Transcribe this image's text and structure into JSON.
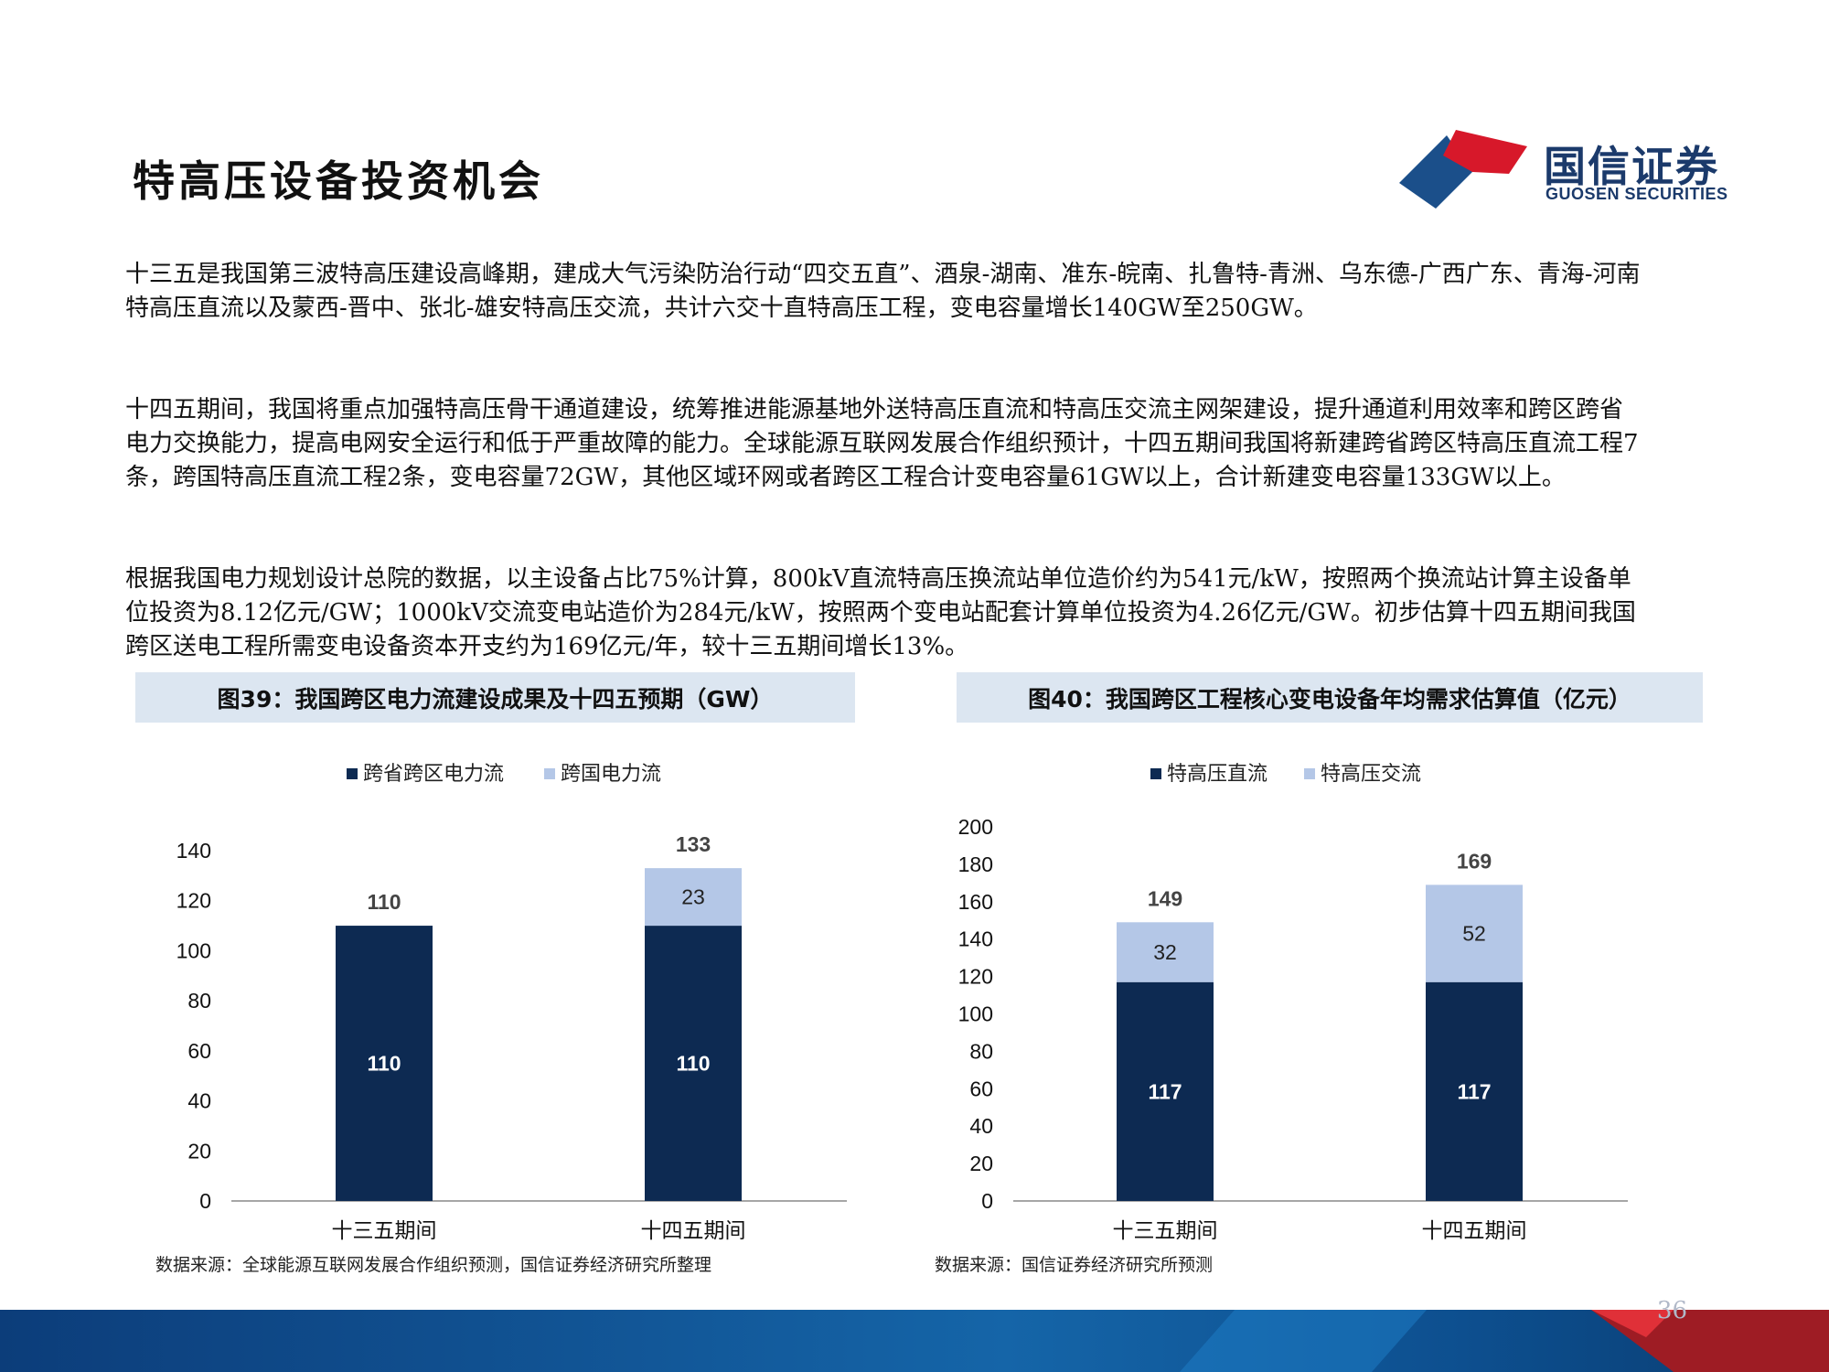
{
  "header": {
    "title": "特高压设备投资机会",
    "logo_cn": "国信证券",
    "logo_en": "GUOSEN SECURITIES",
    "colors": {
      "logo_red": "#d7182a",
      "logo_blue": "#1b4f8a",
      "logo_dark": "#1b3a6b"
    }
  },
  "paragraphs": [
    "十三五是我国第三波特高压建设高峰期，建成大气污染防治行动“四交五直”、酒泉-湖南、准东-皖南、扎鲁特-青洲、乌东德-广西广东、青海-河南特高压直流以及蒙西-晋中、张北-雄安特高压交流，共计六交十直特高压工程，变电容量增长140GW至250GW。",
    "十四五期间，我国将重点加强特高压骨干通道建设，统筹推进能源基地外送特高压直流和特高压交流主网架建设，提升通道利用效率和跨区跨省电力交换能力，提高电网安全运行和低于严重故障的能力。全球能源互联网发展合作组织预计，十四五期间我国将新建跨省跨区特高压直流工程7条，跨国特高压直流工程2条，变电容量72GW，其他区域环网或者跨区工程合计变电容量61GW以上，合计新建变电容量133GW以上。",
    "根据我国电力规划设计总院的数据，以主设备占比75%计算，800kV直流特高压换流站单位造价约为541元/kW，按照两个换流站计算主设备单位投资为8.12亿元/GW；1000kV交流变电站造价为284元/kW，按照两个变电站配套计算单位投资为4.26亿元/GW。初步估算十四五期间我国跨区送电工程所需变电设备资本开支约为169亿元/年，较十三五期间增长13%。"
  ],
  "chart_data": [
    {
      "type": "bar",
      "stacked": true,
      "title": "图39：我国跨区电力流建设成果及十四五预期（GW）",
      "categories": [
        "十三五期间",
        "十四五期间"
      ],
      "series": [
        {
          "name": "跨省跨区电力流",
          "values": [
            110,
            110
          ],
          "color": "#0d2a52"
        },
        {
          "name": "跨国电力流",
          "values": [
            0,
            23
          ],
          "color": "#b4c7e7"
        }
      ],
      "totals": [
        110,
        133
      ],
      "ylim": [
        0,
        140
      ],
      "yticks": [
        0,
        20,
        40,
        60,
        80,
        100,
        120,
        140
      ],
      "grid": false,
      "legend": "top",
      "source": "数据来源：全球能源互联网发展合作组织预测，国信证券经济研究所整理"
    },
    {
      "type": "bar",
      "stacked": true,
      "title": "图40：我国跨区工程核心变电设备年均需求估算值（亿元）",
      "categories": [
        "十三五期间",
        "十四五期间"
      ],
      "series": [
        {
          "name": "特高压直流",
          "values": [
            117,
            117
          ],
          "color": "#0d2a52"
        },
        {
          "name": "特高压交流",
          "values": [
            32,
            52
          ],
          "color": "#b4c7e7"
        }
      ],
      "totals": [
        149,
        169
      ],
      "ylim": [
        0,
        200
      ],
      "yticks": [
        0,
        20,
        40,
        60,
        80,
        100,
        120,
        140,
        160,
        180,
        200
      ],
      "grid": false,
      "legend": "top",
      "source": "数据来源：国信证券经济研究所预测"
    }
  ],
  "footer": {
    "page_number": "36"
  }
}
